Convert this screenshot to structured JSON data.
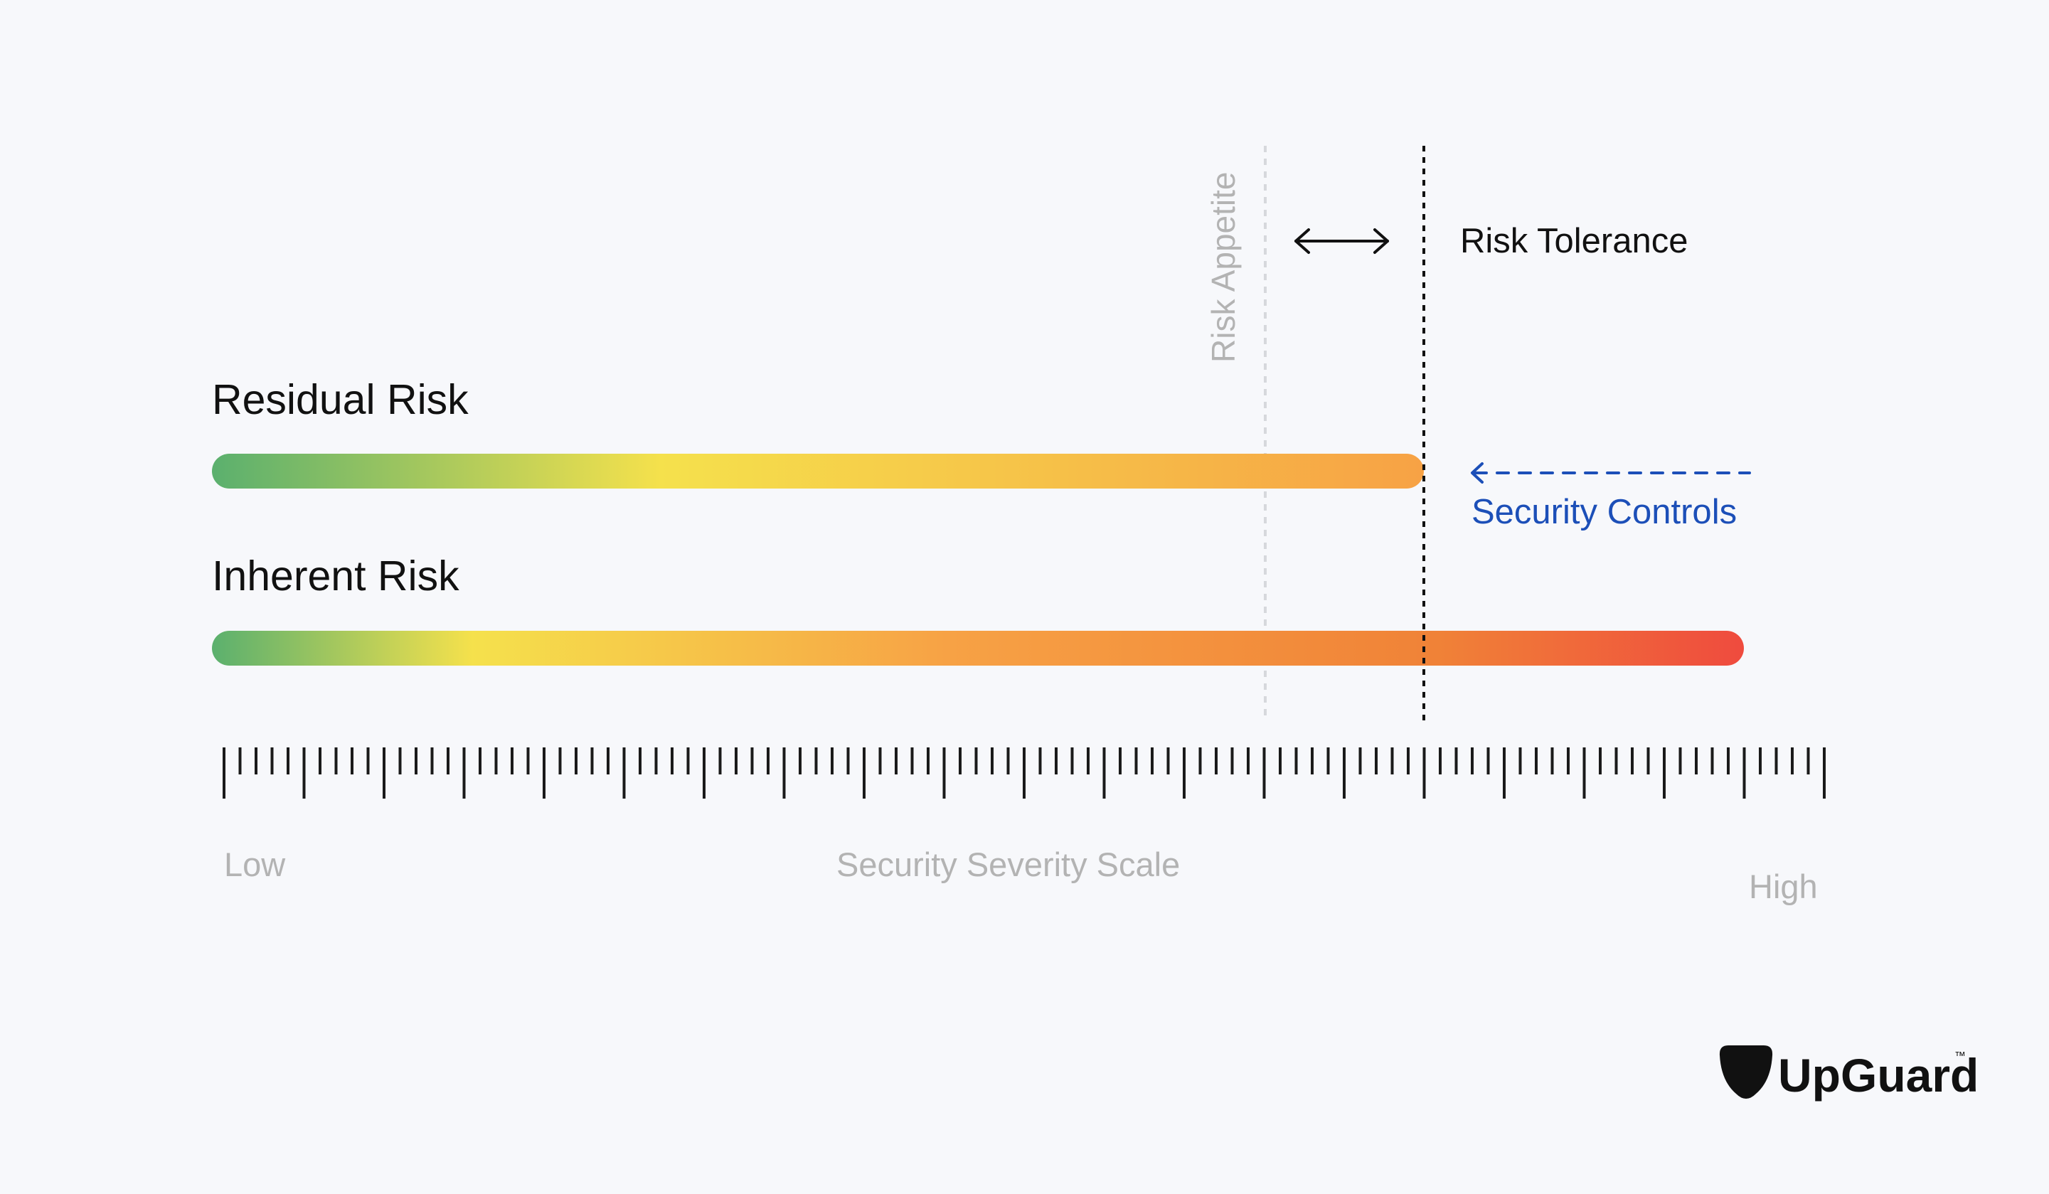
{
  "diagram": {
    "residual_risk_label": "Residual Risk",
    "inherent_risk_label": "Inherent Risk",
    "risk_appetite_label": "Risk Appetite",
    "risk_tolerance_label": "Risk Tolerance",
    "security_controls_label": "Security Controls",
    "scale": {
      "title": "Security Severity Scale",
      "low_label": "Low",
      "high_label": "High"
    },
    "colors": {
      "gradient_green": "#5bb06e",
      "gradient_yellow": "#f5e14c",
      "gradient_orange": "#f7a245",
      "gradient_red": "#ef4b3e",
      "security_controls_blue": "#1c4fb8",
      "appetite_line_grey": "#d6d8dc",
      "tolerance_line_black": "#111111"
    }
  },
  "brand": {
    "name": "UpGuard",
    "trademark": "™",
    "logo_icon": "upguard-shield-icon"
  }
}
